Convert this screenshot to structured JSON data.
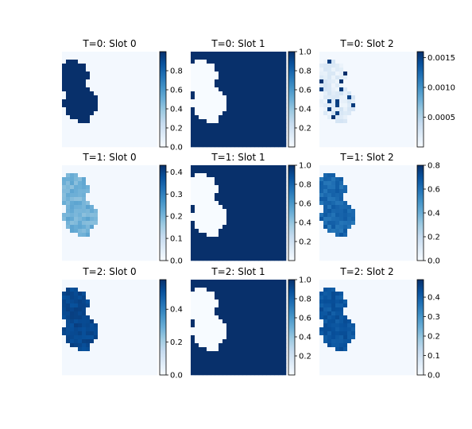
{
  "colormap": {
    "name": "Blues",
    "stops": [
      "#f7fbff",
      "#deebf7",
      "#c6dbef",
      "#9ecae1",
      "#6baed6",
      "#4292c6",
      "#2171b5",
      "#08519c",
      "#08306b"
    ]
  },
  "chart_data": [
    {
      "type": "heatmap",
      "title": "T=0: Slot 0",
      "pattern": "objects",
      "intensity": 1.0,
      "noise": 0.0,
      "colorbar": {
        "range": [
          0,
          1.0
        ],
        "ticks": [
          0.0,
          0.2,
          0.4,
          0.6,
          0.8
        ],
        "tick_labels": [
          "0.0",
          "0.2",
          "0.4",
          "0.6",
          "0.8"
        ]
      }
    },
    {
      "type": "heatmap",
      "title": "T=0: Slot 1",
      "pattern": "background",
      "intensity": 1.0,
      "noise": 0.0,
      "colorbar": {
        "range": [
          0,
          1.0
        ],
        "ticks": [
          0.2,
          0.4,
          0.6,
          0.8,
          1.0
        ],
        "tick_labels": [
          "0.2",
          "0.4",
          "0.6",
          "0.8",
          "1.0"
        ]
      }
    },
    {
      "type": "heatmap",
      "title": "T=0: Slot 2",
      "pattern": "faint",
      "intensity": 0.2,
      "noise": 0.35,
      "colorbar": {
        "range": [
          0,
          0.0016
        ],
        "ticks": [
          0.0005,
          0.001,
          0.0015
        ],
        "tick_labels": [
          "0.0005",
          "0.0010",
          "0.0015"
        ]
      }
    },
    {
      "type": "heatmap",
      "title": "T=1: Slot 0",
      "pattern": "objects",
      "intensity": 0.55,
      "noise": 0.25,
      "colorbar": {
        "range": [
          0,
          0.43
        ],
        "ticks": [
          0.0,
          0.1,
          0.2,
          0.3,
          0.4
        ],
        "tick_labels": [
          "0.0",
          "0.1",
          "0.2",
          "0.3",
          "0.4"
        ]
      }
    },
    {
      "type": "heatmap",
      "title": "T=1: Slot 1",
      "pattern": "background",
      "intensity": 1.0,
      "noise": 0.0,
      "colorbar": {
        "range": [
          0,
          1.0
        ],
        "ticks": [
          0.2,
          0.4,
          0.6,
          0.8,
          1.0
        ],
        "tick_labels": [
          "0.2",
          "0.4",
          "0.6",
          "0.8",
          "1.0"
        ]
      }
    },
    {
      "type": "heatmap",
      "title": "T=1: Slot 2",
      "pattern": "objects",
      "intensity": 0.85,
      "noise": 0.15,
      "colorbar": {
        "range": [
          0,
          0.8
        ],
        "ticks": [
          0.0,
          0.2,
          0.4,
          0.6,
          0.8
        ],
        "tick_labels": [
          "0.0",
          "0.2",
          "0.4",
          "0.6",
          "0.8"
        ]
      }
    },
    {
      "type": "heatmap",
      "title": "T=2: Slot 0",
      "pattern": "objects",
      "intensity": 0.95,
      "noise": 0.08,
      "colorbar": {
        "range": [
          0,
          0.58
        ],
        "ticks": [
          0.0,
          0.2,
          0.4
        ],
        "tick_labels": [
          "0.0",
          "0.2",
          "0.4"
        ]
      }
    },
    {
      "type": "heatmap",
      "title": "T=2: Slot 1",
      "pattern": "background",
      "intensity": 1.0,
      "noise": 0.0,
      "colorbar": {
        "range": [
          0,
          1.0
        ],
        "ticks": [
          0.2,
          0.4,
          0.6,
          0.8,
          1.0
        ],
        "tick_labels": [
          "0.2",
          "0.4",
          "0.6",
          "0.8",
          "1.0"
        ]
      }
    },
    {
      "type": "heatmap",
      "title": "T=2: Slot 2",
      "pattern": "objects",
      "intensity": 0.9,
      "noise": 0.1,
      "colorbar": {
        "range": [
          0,
          0.49
        ],
        "ticks": [
          0.0,
          0.1,
          0.2,
          0.3,
          0.4
        ],
        "tick_labels": [
          "0.0",
          "0.1",
          "0.2",
          "0.3",
          "0.4"
        ]
      }
    }
  ]
}
